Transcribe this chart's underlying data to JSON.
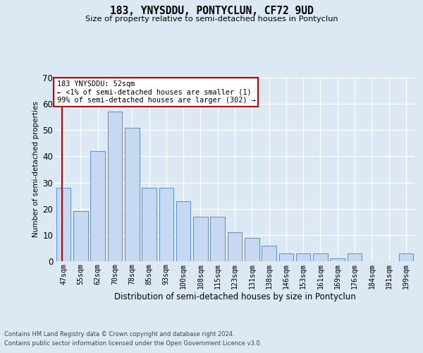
{
  "title": "183, YNYSDDU, PONTYCLUN, CF72 9UD",
  "subtitle": "Size of property relative to semi-detached houses in Pontyclun",
  "xlabel": "Distribution of semi-detached houses by size in Pontyclun",
  "ylabel": "Number of semi-detached properties",
  "categories": [
    "47sqm",
    "55sqm",
    "62sqm",
    "70sqm",
    "78sqm",
    "85sqm",
    "93sqm",
    "100sqm",
    "108sqm",
    "115sqm",
    "123sqm",
    "131sqm",
    "138sqm",
    "146sqm",
    "153sqm",
    "161sqm",
    "169sqm",
    "176sqm",
    "184sqm",
    "191sqm",
    "199sqm"
  ],
  "values": [
    28,
    19,
    42,
    57,
    51,
    28,
    28,
    23,
    17,
    17,
    11,
    9,
    6,
    3,
    3,
    3,
    1,
    3,
    0,
    0,
    3
  ],
  "bar_color": "#c6d9f1",
  "bar_edge_color": "#5b8fc9",
  "redline_color": "#cc0000",
  "annotation_title": "183 YNYSDDU: 52sqm",
  "annotation_line1": "← <1% of semi-detached houses are smaller (1)",
  "annotation_line2": "99% of semi-detached houses are larger (302) →",
  "annotation_box_facecolor": "#ffffff",
  "annotation_box_edgecolor": "#cc0000",
  "ylim": [
    0,
    70
  ],
  "yticks": [
    0,
    10,
    20,
    30,
    40,
    50,
    60,
    70
  ],
  "background_color": "#dce9f5",
  "grid_color": "#ffffff",
  "footer1": "Contains HM Land Registry data © Crown copyright and database right 2024.",
  "footer2": "Contains public sector information licensed under the Open Government Licence v3.0."
}
